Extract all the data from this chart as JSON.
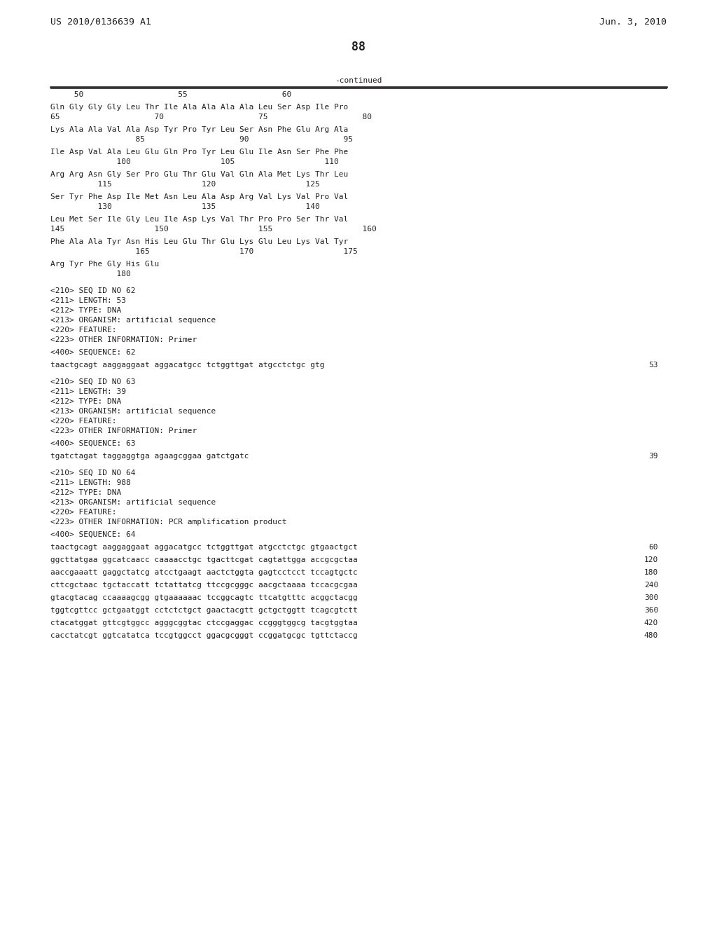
{
  "header_left": "US 2010/0136639 A1",
  "header_right": "Jun. 3, 2010",
  "page_number": "88",
  "continued_label": "-continued",
  "background_color": "#ffffff",
  "text_color": "#231f20",
  "line_color": "#231f20",
  "header_font_size": 9.5,
  "body_font_size": 8.0,
  "page_num_font_size": 12,
  "content_lines": [
    {
      "type": "pos_header",
      "text": "     50                    55                    60"
    },
    {
      "type": "blank_small"
    },
    {
      "type": "sequence",
      "text": "Gln Gly Gly Gly Leu Thr Ile Ala Ala Ala Ala Leu Ser Asp Ile Pro"
    },
    {
      "type": "position",
      "text": "65                    70                    75                    80"
    },
    {
      "type": "blank_small"
    },
    {
      "type": "sequence",
      "text": "Lys Ala Ala Val Ala Asp Tyr Pro Tyr Leu Ser Asn Phe Glu Arg Ala"
    },
    {
      "type": "position",
      "text": "                  85                    90                    95"
    },
    {
      "type": "blank_small"
    },
    {
      "type": "sequence",
      "text": "Ile Asp Val Ala Leu Glu Gln Pro Tyr Leu Glu Ile Asn Ser Phe Phe"
    },
    {
      "type": "position",
      "text": "              100                   105                   110"
    },
    {
      "type": "blank_small"
    },
    {
      "type": "sequence",
      "text": "Arg Arg Asn Gly Ser Pro Glu Thr Glu Val Gln Ala Met Lys Thr Leu"
    },
    {
      "type": "position",
      "text": "          115                   120                   125"
    },
    {
      "type": "blank_small"
    },
    {
      "type": "sequence",
      "text": "Ser Tyr Phe Asp Ile Met Asn Leu Ala Asp Arg Val Lys Val Pro Val"
    },
    {
      "type": "position",
      "text": "          130                   135                   140"
    },
    {
      "type": "blank_small"
    },
    {
      "type": "sequence",
      "text": "Leu Met Ser Ile Gly Leu Ile Asp Lys Val Thr Pro Pro Ser Thr Val"
    },
    {
      "type": "position",
      "text": "145                   150                   155                   160"
    },
    {
      "type": "blank_small"
    },
    {
      "type": "sequence",
      "text": "Phe Ala Ala Tyr Asn His Leu Glu Thr Glu Lys Glu Leu Lys Val Tyr"
    },
    {
      "type": "position",
      "text": "                  165                   170                   175"
    },
    {
      "type": "blank_small"
    },
    {
      "type": "sequence",
      "text": "Arg Tyr Phe Gly His Glu"
    },
    {
      "type": "position",
      "text": "              180"
    },
    {
      "type": "blank_large"
    },
    {
      "type": "meta",
      "text": "<210> SEQ ID NO 62"
    },
    {
      "type": "meta",
      "text": "<211> LENGTH: 53"
    },
    {
      "type": "meta",
      "text": "<212> TYPE: DNA"
    },
    {
      "type": "meta",
      "text": "<213> ORGANISM: artificial sequence"
    },
    {
      "type": "meta",
      "text": "<220> FEATURE:"
    },
    {
      "type": "meta",
      "text": "<223> OTHER INFORMATION: Primer"
    },
    {
      "type": "blank_small"
    },
    {
      "type": "meta",
      "text": "<400> SEQUENCE: 62"
    },
    {
      "type": "blank_small"
    },
    {
      "type": "seq_with_num",
      "seq": "taactgcagt aaggaggaat aggacatgcc tctggttgat atgcctctgc gtg",
      "num": "53"
    },
    {
      "type": "blank_large"
    },
    {
      "type": "meta",
      "text": "<210> SEQ ID NO 63"
    },
    {
      "type": "meta",
      "text": "<211> LENGTH: 39"
    },
    {
      "type": "meta",
      "text": "<212> TYPE: DNA"
    },
    {
      "type": "meta",
      "text": "<213> ORGANISM: artificial sequence"
    },
    {
      "type": "meta",
      "text": "<220> FEATURE:"
    },
    {
      "type": "meta",
      "text": "<223> OTHER INFORMATION: Primer"
    },
    {
      "type": "blank_small"
    },
    {
      "type": "meta",
      "text": "<400> SEQUENCE: 63"
    },
    {
      "type": "blank_small"
    },
    {
      "type": "seq_with_num",
      "seq": "tgatctagat taggaggtga agaagcggaa gatctgatc",
      "num": "39"
    },
    {
      "type": "blank_large"
    },
    {
      "type": "meta",
      "text": "<210> SEQ ID NO 64"
    },
    {
      "type": "meta",
      "text": "<211> LENGTH: 988"
    },
    {
      "type": "meta",
      "text": "<212> TYPE: DNA"
    },
    {
      "type": "meta",
      "text": "<213> ORGANISM: artificial sequence"
    },
    {
      "type": "meta",
      "text": "<220> FEATURE:"
    },
    {
      "type": "meta",
      "text": "<223> OTHER INFORMATION: PCR amplification product"
    },
    {
      "type": "blank_small"
    },
    {
      "type": "meta",
      "text": "<400> SEQUENCE: 64"
    },
    {
      "type": "blank_small"
    },
    {
      "type": "seq_with_num",
      "seq": "taactgcagt aaggaggaat aggacatgcc tctggttgat atgcctctgc gtgaactgct",
      "num": "60"
    },
    {
      "type": "blank_small"
    },
    {
      "type": "seq_with_num",
      "seq": "ggcttatgaa ggcatcaacc caaaacctgc tgacttcgat cagtattgga accgcgctaa",
      "num": "120"
    },
    {
      "type": "blank_small"
    },
    {
      "type": "seq_with_num",
      "seq": "aaccgaaatt gaggctatcg atcctgaagt aactctggta gagtcctcct tccagtgctc",
      "num": "180"
    },
    {
      "type": "blank_small"
    },
    {
      "type": "seq_with_num",
      "seq": "cttcgctaac tgctaccatt tctattatcg ttccgcgggc aacgctaaaa tccacgcgaa",
      "num": "240"
    },
    {
      "type": "blank_small"
    },
    {
      "type": "seq_with_num",
      "seq": "gtacgtacag ccaaaagcgg gtgaaaaaac tccggcagtc ttcatgtttc acggctacgg",
      "num": "300"
    },
    {
      "type": "blank_small"
    },
    {
      "type": "seq_with_num",
      "seq": "tggtcgttcc gctgaatggt cctctctgct gaactacgtt gctgctggtt tcagcgtctt",
      "num": "360"
    },
    {
      "type": "blank_small"
    },
    {
      "type": "seq_with_num",
      "seq": "ctacatggat gttcgtggcc agggcggtac ctccgaggac ccgggtggcg tacgtggtaa",
      "num": "420"
    },
    {
      "type": "blank_small"
    },
    {
      "type": "seq_with_num",
      "seq": "cacctatcgt ggtcatatca tccgtggcct ggacgcgggt ccggatgcgc tgttctaccg",
      "num": "480"
    }
  ]
}
